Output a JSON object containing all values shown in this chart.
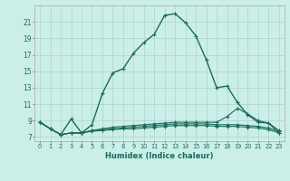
{
  "xlabel": "Humidex (Indice chaleur)",
  "ylabel": "",
  "background_color": "#cceee8",
  "line_color": "#1a6b5a",
  "grid_color": "#aad4cc",
  "x": [
    0,
    1,
    2,
    3,
    4,
    5,
    6,
    7,
    8,
    9,
    10,
    11,
    12,
    13,
    14,
    15,
    16,
    17,
    18,
    19,
    20,
    21,
    22,
    23
  ],
  "series": [
    [
      8.8,
      8.0,
      7.3,
      9.2,
      7.5,
      8.5,
      12.3,
      14.8,
      15.3,
      17.2,
      18.5,
      19.5,
      21.8,
      22.0,
      20.9,
      19.3,
      16.4,
      13.0,
      13.2,
      11.2,
      9.7,
      8.8,
      8.7,
      7.5
    ],
    [
      8.8,
      8.0,
      7.3,
      7.5,
      7.5,
      7.8,
      8.0,
      8.2,
      8.3,
      8.4,
      8.5,
      8.6,
      8.7,
      8.8,
      8.8,
      8.8,
      8.8,
      8.8,
      9.5,
      10.5,
      9.8,
      9.0,
      8.7,
      7.8
    ],
    [
      8.8,
      8.0,
      7.3,
      7.5,
      7.5,
      7.8,
      7.9,
      8.0,
      8.1,
      8.2,
      8.3,
      8.4,
      8.5,
      8.6,
      8.6,
      8.6,
      8.6,
      8.5,
      8.5,
      8.5,
      8.4,
      8.3,
      8.1,
      7.7
    ],
    [
      8.8,
      8.0,
      7.3,
      7.5,
      7.5,
      7.7,
      7.8,
      7.9,
      8.0,
      8.0,
      8.1,
      8.2,
      8.3,
      8.4,
      8.4,
      8.4,
      8.4,
      8.3,
      8.3,
      8.3,
      8.2,
      8.1,
      7.9,
      7.5
    ]
  ],
  "yticks": [
    7,
    9,
    11,
    13,
    15,
    17,
    19,
    21
  ],
  "ylim": [
    6.5,
    23.0
  ],
  "xlim": [
    -0.5,
    23.5
  ]
}
